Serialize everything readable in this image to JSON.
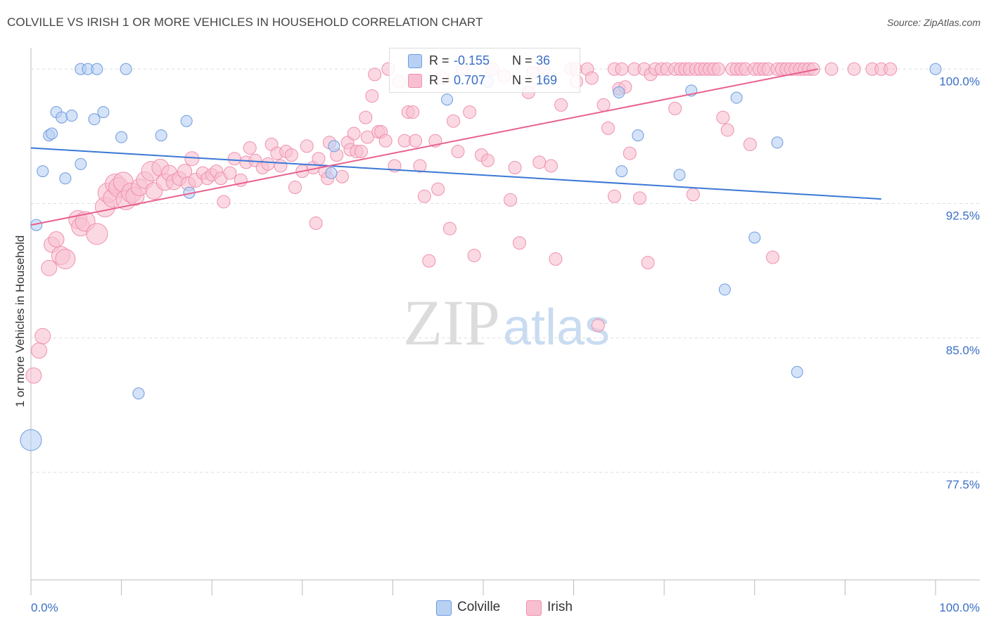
{
  "chart_data": {
    "type": "scatter",
    "title": "COLVILLE VS IRISH 1 OR MORE VEHICLES IN HOUSEHOLD CORRELATION CHART",
    "source": "Source: ZipAtlas.com",
    "xlabel": "",
    "ylabel": "1 or more Vehicles in Household",
    "xlim": [
      0,
      100
    ],
    "ylim": [
      71.5,
      101.5
    ],
    "x_tick_labels": [
      "0.0%",
      "100.0%"
    ],
    "y_ticks": [
      {
        "value": 100,
        "label": "100.0%"
      },
      {
        "value": 92.5,
        "label": "92.5%"
      },
      {
        "value": 85,
        "label": "85.0%"
      },
      {
        "value": 77.5,
        "label": "77.5%"
      }
    ],
    "watermark": {
      "zip": "ZIP",
      "atlas": "atlas"
    },
    "legend": {
      "r_label": "R =",
      "n_label": "N =",
      "entries": [
        {
          "name": "Colville",
          "r": "-0.155",
          "n": "36"
        },
        {
          "name": "Irish",
          "r": "0.707",
          "n": "169"
        }
      ]
    },
    "colors": {
      "colville_fill": "#b8d1f3",
      "colville_stroke": "#6f9ae0",
      "colville_line": "#3b78d6",
      "irish_fill": "#f8bfd0",
      "irish_stroke": "#ef90ae",
      "irish_line": "#e8608e",
      "value_text": "#3a6fc6",
      "grid": "#dddddd"
    },
    "series": [
      {
        "name": "Colville",
        "trend": {
          "x0": 0,
          "y0": 95.6,
          "x1": 94,
          "y1": 92.75
        },
        "points": [
          [
            0,
            79.3,
            15
          ],
          [
            0.6,
            91.3,
            8
          ],
          [
            1.3,
            94.3,
            8
          ],
          [
            2,
            96.3,
            8
          ],
          [
            2.3,
            96.4,
            8
          ],
          [
            2.8,
            97.6,
            8
          ],
          [
            3.4,
            97.3,
            8
          ],
          [
            3.8,
            93.9,
            8
          ],
          [
            4.5,
            97.4,
            8
          ],
          [
            5.5,
            94.7,
            8
          ],
          [
            5.5,
            100,
            8
          ],
          [
            6.3,
            100,
            8
          ],
          [
            7,
            97.2,
            8
          ],
          [
            7.3,
            100,
            8
          ],
          [
            8,
            97.6,
            8
          ],
          [
            10,
            96.2,
            8
          ],
          [
            10.5,
            100,
            8
          ],
          [
            11.9,
            81.9,
            8
          ],
          [
            14.4,
            96.3,
            8
          ],
          [
            17.2,
            97.1,
            8
          ],
          [
            17.5,
            93.1,
            8
          ],
          [
            33.5,
            95.7,
            8
          ],
          [
            33.2,
            94.2,
            8
          ],
          [
            46,
            98.3,
            8
          ],
          [
            50.5,
            99.3,
            8
          ],
          [
            65,
            98.7,
            8
          ],
          [
            65.3,
            94.3,
            8
          ],
          [
            67.1,
            96.3,
            8
          ],
          [
            71.7,
            94.1,
            8
          ],
          [
            73,
            98.8,
            8
          ],
          [
            76.7,
            87.7,
            8
          ],
          [
            78,
            98.4,
            8
          ],
          [
            80,
            90.6,
            8
          ],
          [
            82.5,
            95.9,
            8
          ],
          [
            84.7,
            83.1,
            8
          ],
          [
            100,
            100,
            8
          ]
        ]
      },
      {
        "name": "Irish",
        "trend": {
          "x0": 0,
          "y0": 91.3,
          "x1": 87,
          "y1": 100
        },
        "points": [
          [
            0.3,
            82.9,
            11
          ],
          [
            0.9,
            84.3,
            11
          ],
          [
            1.3,
            85.1,
            11
          ],
          [
            2,
            88.9,
            11
          ],
          [
            2.3,
            90.2,
            11
          ],
          [
            2.8,
            90.5,
            11
          ],
          [
            3.3,
            89.6,
            13
          ],
          [
            3.8,
            89.4,
            14
          ],
          [
            5.2,
            91.6,
            13
          ],
          [
            5.5,
            91.2,
            13
          ],
          [
            6,
            91.5,
            14
          ],
          [
            7.3,
            90.8,
            15
          ],
          [
            8.2,
            92.3,
            14
          ],
          [
            8.5,
            93.1,
            14
          ],
          [
            9,
            92.8,
            13
          ],
          [
            9.3,
            93.6,
            14
          ],
          [
            9.7,
            93.4,
            14
          ],
          [
            10.2,
            93.7,
            14
          ],
          [
            10.5,
            92.7,
            14
          ],
          [
            11.1,
            93.1,
            14
          ],
          [
            11.5,
            92.9,
            13
          ],
          [
            12,
            93.4,
            12
          ],
          [
            12.6,
            93.8,
            12
          ],
          [
            13.3,
            94.3,
            14
          ],
          [
            13.6,
            93.2,
            12
          ],
          [
            14.3,
            94.5,
            12
          ],
          [
            14.8,
            93.7,
            12
          ],
          [
            15.3,
            94.2,
            11
          ],
          [
            15.8,
            93.7,
            11
          ],
          [
            16.4,
            93.9,
            10
          ],
          [
            17,
            94.3,
            10
          ],
          [
            17.4,
            93.6,
            10
          ],
          [
            17.8,
            95.0,
            10
          ],
          [
            18.2,
            93.8,
            10
          ],
          [
            19,
            94.2,
            9
          ],
          [
            19.5,
            93.9,
            9
          ],
          [
            20,
            94.1,
            9
          ],
          [
            20.5,
            94.3,
            9
          ],
          [
            21,
            93.9,
            9
          ],
          [
            21.3,
            92.6,
            9
          ],
          [
            22,
            94.2,
            9
          ],
          [
            22.5,
            95.0,
            9
          ],
          [
            23.2,
            93.8,
            9
          ],
          [
            23.8,
            94.8,
            9
          ],
          [
            24.2,
            95.6,
            9
          ],
          [
            24.8,
            94.9,
            9
          ],
          [
            25.6,
            94.5,
            9
          ],
          [
            26.2,
            94.7,
            9
          ],
          [
            26.6,
            95.8,
            9
          ],
          [
            27.2,
            95.3,
            9
          ],
          [
            27.6,
            94.6,
            9
          ],
          [
            28.2,
            95.4,
            9
          ],
          [
            28.8,
            95.2,
            9
          ],
          [
            29.2,
            93.4,
            9
          ],
          [
            30,
            94.3,
            9
          ],
          [
            30.5,
            95.7,
            9
          ],
          [
            31.2,
            94.5,
            9
          ],
          [
            31.5,
            91.4,
            9
          ],
          [
            31.8,
            95.0,
            9
          ],
          [
            32.5,
            94.3,
            9
          ],
          [
            32.8,
            93.9,
            9
          ],
          [
            33,
            95.9,
            9
          ],
          [
            33.8,
            95.2,
            9
          ],
          [
            34.4,
            94.0,
            9
          ],
          [
            35,
            95.9,
            9
          ],
          [
            35.3,
            95.5,
            9
          ],
          [
            35.7,
            96.4,
            9
          ],
          [
            36,
            95.4,
            9
          ],
          [
            36.5,
            95.4,
            9
          ],
          [
            37,
            97.3,
            9
          ],
          [
            37.2,
            96.2,
            9
          ],
          [
            37.7,
            98.5,
            9
          ],
          [
            38,
            99.7,
            9
          ],
          [
            38.4,
            96.5,
            9
          ],
          [
            38.7,
            96.5,
            9
          ],
          [
            39.2,
            96.0,
            9
          ],
          [
            39.5,
            100,
            9
          ],
          [
            40.2,
            94.6,
            9
          ],
          [
            40.7,
            99.3,
            9
          ],
          [
            41.3,
            96.0,
            9
          ],
          [
            41.7,
            97.6,
            9
          ],
          [
            42.2,
            97.6,
            9
          ],
          [
            42.5,
            96.0,
            9
          ],
          [
            43,
            94.6,
            9
          ],
          [
            43.5,
            92.9,
            9
          ],
          [
            44,
            89.3,
            9
          ],
          [
            44.7,
            96.0,
            9
          ],
          [
            45,
            93.3,
            9
          ],
          [
            45.5,
            99.5,
            9
          ],
          [
            46.3,
            91.1,
            9
          ],
          [
            46.7,
            97.1,
            9
          ],
          [
            47.2,
            95.4,
            9
          ],
          [
            47.7,
            100,
            9
          ],
          [
            48.5,
            97.6,
            9
          ],
          [
            49,
            89.6,
            9
          ],
          [
            49.8,
            95.2,
            9
          ],
          [
            50.5,
            94.9,
            9
          ],
          [
            51,
            100,
            9
          ],
          [
            52.3,
            99.6,
            9
          ],
          [
            53,
            92.7,
            9
          ],
          [
            53.5,
            94.5,
            9
          ],
          [
            54,
            90.3,
            9
          ],
          [
            55,
            98.7,
            9
          ],
          [
            55.5,
            99.8,
            9
          ],
          [
            56.2,
            94.8,
            9
          ],
          [
            56.7,
            100,
            9
          ],
          [
            57.5,
            94.6,
            9
          ],
          [
            58,
            89.4,
            9
          ],
          [
            58.6,
            98.0,
            9
          ],
          [
            59.7,
            100,
            9
          ],
          [
            60.2,
            100,
            9
          ],
          [
            61.5,
            100,
            9
          ],
          [
            62,
            99.5,
            9
          ],
          [
            62.7,
            85.7,
            9
          ],
          [
            63.3,
            98.0,
            9
          ],
          [
            63.8,
            96.7,
            9
          ],
          [
            64.5,
            100,
            9
          ],
          [
            65,
            98.9,
            9
          ],
          [
            65.3,
            100,
            9
          ],
          [
            65.7,
            99.0,
            9
          ],
          [
            66.2,
            95.3,
            9
          ],
          [
            66.7,
            100,
            9
          ],
          [
            67.3,
            92.8,
            9
          ],
          [
            67.8,
            100,
            9
          ],
          [
            68.2,
            89.2,
            9
          ],
          [
            68.5,
            99.7,
            9
          ],
          [
            69,
            100,
            9
          ],
          [
            69.7,
            100,
            9
          ],
          [
            70.3,
            100,
            9
          ],
          [
            71.2,
            100,
            9
          ],
          [
            71.8,
            100,
            9
          ],
          [
            72.3,
            100,
            9
          ],
          [
            72.8,
            100,
            9
          ],
          [
            73.5,
            100,
            9
          ],
          [
            74,
            100,
            9
          ],
          [
            74.5,
            100,
            9
          ],
          [
            75,
            100,
            9
          ],
          [
            75.5,
            100,
            9
          ],
          [
            76,
            100,
            9
          ],
          [
            76.5,
            97.3,
            9
          ],
          [
            77,
            96.6,
            9
          ],
          [
            77.5,
            100,
            9
          ],
          [
            78,
            100,
            9
          ],
          [
            78.5,
            100,
            9
          ],
          [
            79,
            100,
            9
          ],
          [
            79.5,
            95.8,
            9
          ],
          [
            80,
            100,
            9
          ],
          [
            80.5,
            100,
            9
          ],
          [
            81,
            100,
            9
          ],
          [
            81.5,
            100,
            9
          ],
          [
            82,
            89.5,
            9
          ],
          [
            82.5,
            100,
            9
          ],
          [
            83,
            100,
            9
          ],
          [
            83.5,
            100,
            9
          ],
          [
            84,
            100,
            9
          ],
          [
            84.5,
            100,
            9
          ],
          [
            85,
            100,
            9
          ],
          [
            85.5,
            100,
            9
          ],
          [
            86,
            100,
            9
          ],
          [
            86.5,
            100,
            9
          ],
          [
            88.5,
            100,
            9
          ],
          [
            91,
            100,
            9
          ],
          [
            93,
            100,
            9
          ],
          [
            94,
            100,
            9
          ],
          [
            95,
            100,
            9
          ],
          [
            73.2,
            93.0,
            9
          ],
          [
            71.2,
            97.8,
            9
          ],
          [
            60.3,
            99.3,
            9
          ],
          [
            64.5,
            92.9,
            9
          ]
        ]
      }
    ]
  }
}
